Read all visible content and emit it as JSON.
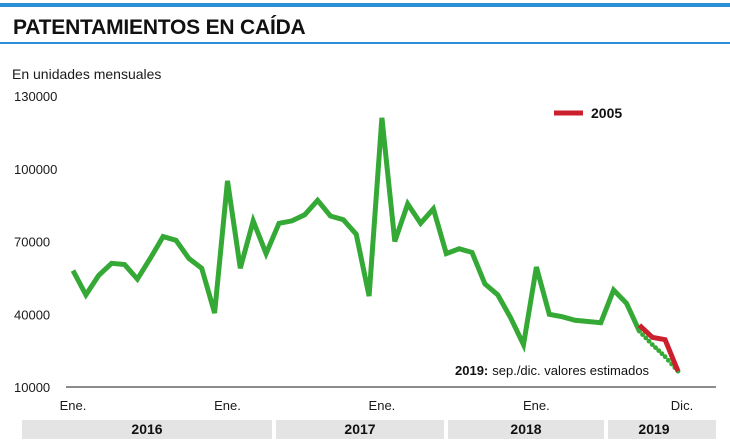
{
  "title": "PATENTAMIENTOS EN CAÍDA",
  "subtitle": "En unidades mensuales",
  "colors": {
    "accent": "#2b8fd6",
    "main_series": "#35a935",
    "series_2005": "#cc1f2e",
    "year_band": "#e4e4e4"
  },
  "chart_data": {
    "type": "line",
    "ylabel": "En unidades mensuales",
    "ylim": [
      10000,
      130000
    ],
    "yticks": [
      130000,
      100000,
      70000,
      40000,
      10000
    ],
    "ytick_labels": [
      "130000",
      "100000",
      "70000",
      "40000",
      "10000"
    ],
    "x_tick_labels": [
      "Ene.",
      "Ene.",
      "Ene.",
      "Ene.",
      "Dic."
    ],
    "x_tick_indices": [
      0,
      12,
      24,
      36,
      47
    ],
    "year_labels": [
      {
        "label": "2016",
        "index": 5.5
      },
      {
        "label": "2017",
        "index": 17.5
      },
      {
        "label": "2018",
        "index": 29.5
      },
      {
        "label": "2019",
        "index": 41.5
      }
    ],
    "x_range": [
      0,
      47
    ],
    "series": [
      {
        "key": "main",
        "style": "solid",
        "x": [
          0,
          1,
          2,
          3,
          4,
          5,
          6,
          7,
          8,
          9,
          10,
          11,
          12,
          13,
          14,
          15,
          16,
          17,
          18,
          19,
          20,
          21,
          22,
          23,
          24,
          25,
          26,
          27,
          28,
          29,
          30,
          31,
          32,
          33,
          34,
          35,
          36,
          37,
          38,
          39,
          40,
          41,
          42,
          43,
          44
        ],
        "values": [
          58000,
          48000,
          56000,
          61000,
          60500,
          54500,
          63000,
          72000,
          70500,
          63000,
          59000,
          40500,
          95000,
          59000,
          78500,
          65000,
          77500,
          78500,
          81000,
          87000,
          80500,
          79000,
          73000,
          47500,
          121000,
          70000,
          85500,
          77500,
          83500,
          65000,
          67000,
          65500,
          52500,
          48000,
          38500,
          27500,
          59500,
          40000,
          39000,
          37500,
          37000,
          36500,
          50000,
          44500,
          33000
        ]
      },
      {
        "key": "estimated",
        "style": "dotted",
        "x": [
          44,
          45,
          46,
          47
        ],
        "values": [
          33000,
          27500,
          22500,
          16500
        ]
      },
      {
        "key": "2005",
        "name": "2005",
        "style": "solid",
        "x": [
          44,
          45,
          46,
          47
        ],
        "values": [
          35500,
          30500,
          29500,
          16500
        ]
      }
    ],
    "legend": {
      "entries": [
        "2005"
      ],
      "position": "top-right"
    },
    "annotation": {
      "bold": "2019:",
      "text": "sep./dic. valores estimados"
    },
    "grid": false
  }
}
